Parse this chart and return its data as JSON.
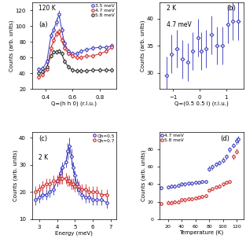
{
  "panel_a": {
    "title": "120 K",
    "xlabel": "Q=(h h 0) (r.l.u.)",
    "ylabel": "Counts (arb. units)",
    "ylim": [
      20,
      130
    ],
    "xlim": [
      0.3,
      0.92
    ],
    "yticks": [
      20,
      40,
      60,
      80,
      100,
      120
    ],
    "xticks": [
      0.4,
      0.6,
      0.8
    ],
    "label": "(a)",
    "series": [
      {
        "label": "3.5 meV",
        "color": "#3333bb",
        "x": [
          0.35,
          0.38,
          0.41,
          0.44,
          0.46,
          0.48,
          0.5,
          0.52,
          0.54,
          0.57,
          0.6,
          0.63,
          0.66,
          0.7,
          0.75,
          0.8,
          0.85,
          0.89
        ],
        "y": [
          45,
          46,
          55,
          88,
          95,
          105,
          115,
          95,
          78,
          68,
          65,
          65,
          68,
          70,
          72,
          73,
          73,
          75
        ],
        "yerr": [
          3,
          3,
          3,
          4,
          4,
          5,
          5,
          4,
          4,
          3,
          3,
          3,
          3,
          3,
          3,
          3,
          3,
          3
        ],
        "xerr": [
          0.01,
          0.01,
          0.01,
          0.01,
          0.01,
          0.01,
          0.01,
          0.01,
          0.01,
          0.01,
          0.01,
          0.01,
          0.01,
          0.01,
          0.01,
          0.01,
          0.01,
          0.01
        ]
      },
      {
        "label": "4.7 meV",
        "color": "#cc2222",
        "x": [
          0.35,
          0.38,
          0.41,
          0.44,
          0.46,
          0.48,
          0.5,
          0.52,
          0.54,
          0.57,
          0.6,
          0.63,
          0.66,
          0.7,
          0.75,
          0.8,
          0.85,
          0.89
        ],
        "y": [
          35,
          38,
          45,
          72,
          82,
          90,
          93,
          82,
          72,
          65,
          62,
          60,
          60,
          62,
          62,
          65,
          68,
          73
        ],
        "yerr": [
          3,
          3,
          3,
          4,
          4,
          4,
          4,
          4,
          3,
          3,
          3,
          3,
          3,
          3,
          3,
          3,
          3,
          3
        ],
        "xerr": [
          0.01,
          0.01,
          0.01,
          0.01,
          0.01,
          0.01,
          0.01,
          0.01,
          0.01,
          0.01,
          0.01,
          0.01,
          0.01,
          0.01,
          0.01,
          0.01,
          0.01,
          0.01
        ]
      },
      {
        "label": "5.8 meV",
        "color": "#222222",
        "x": [
          0.35,
          0.38,
          0.41,
          0.44,
          0.46,
          0.48,
          0.5,
          0.52,
          0.54,
          0.57,
          0.6,
          0.63,
          0.66,
          0.7,
          0.75,
          0.8,
          0.85,
          0.89
        ],
        "y": [
          40,
          42,
          48,
          62,
          67,
          67,
          68,
          65,
          55,
          48,
          44,
          43,
          43,
          43,
          44,
          44,
          44,
          44
        ],
        "yerr": [
          3,
          3,
          3,
          3,
          3,
          3,
          3,
          3,
          3,
          3,
          3,
          3,
          3,
          3,
          3,
          3,
          3,
          3
        ],
        "xerr": [
          0.01,
          0.01,
          0.01,
          0.01,
          0.01,
          0.01,
          0.01,
          0.01,
          0.01,
          0.01,
          0.01,
          0.01,
          0.01,
          0.01,
          0.01,
          0.01,
          0.01,
          0.01
        ]
      }
    ]
  },
  "panel_b": {
    "title": "2 K",
    "subtitle": "4.7 meV",
    "xlabel": "Q=(0.5 0.5 l) (r.l.u.)",
    "ylabel": "Counts (arb. units)",
    "ylim": [
      27,
      43
    ],
    "xlim": [
      -1.5,
      1.65
    ],
    "yticks": [
      30,
      35,
      40
    ],
    "xticks": [
      -1,
      0,
      1
    ],
    "label": "(b)",
    "series": [
      {
        "color": "#3333bb",
        "x": [
          -1.25,
          -1.05,
          -0.85,
          -0.65,
          -0.45,
          -0.25,
          -0.05,
          0.05,
          0.25,
          0.45,
          0.65,
          0.85,
          1.05,
          1.25,
          1.45
        ],
        "y": [
          29.5,
          33.5,
          34.5,
          32.5,
          32.0,
          34.0,
          36.5,
          34.0,
          34.5,
          37.0,
          35.0,
          35.0,
          39.0,
          39.5,
          39.5
        ],
        "yerr": [
          3.5,
          3.5,
          3.5,
          3.5,
          3.5,
          3.5,
          3.5,
          3.5,
          3.5,
          3.5,
          3.5,
          3.5,
          3.5,
          3.5,
          3.5
        ],
        "xerr": [
          0.08,
          0.08,
          0.08,
          0.08,
          0.08,
          0.08,
          0.08,
          0.08,
          0.08,
          0.08,
          0.08,
          0.08,
          0.08,
          0.08,
          0.08
        ]
      }
    ]
  },
  "panel_c": {
    "title": "2 K",
    "xlabel": "Energy (meV)",
    "ylabel": "Counts (arb. units)",
    "ylim": [
      10,
      42
    ],
    "xlim": [
      2.6,
      7.3
    ],
    "yticks": [
      10,
      20,
      30,
      40
    ],
    "xticks": [
      3,
      4,
      5,
      6,
      7
    ],
    "label": "(c)",
    "series": [
      {
        "label": "Qh=0.5",
        "color": "#3333bb",
        "x": [
          2.8,
          3.0,
          3.2,
          3.4,
          3.6,
          3.8,
          4.0,
          4.1,
          4.2,
          4.3,
          4.5,
          4.6,
          4.7,
          4.8,
          4.9,
          5.0,
          5.1,
          5.2,
          5.4,
          5.6,
          5.8,
          6.0,
          6.2,
          6.5,
          6.8
        ],
        "y": [
          17,
          18,
          19,
          19,
          20,
          21,
          24,
          25,
          27,
          29,
          31,
          35,
          37,
          33,
          29,
          26,
          23,
          21,
          19,
          18,
          18,
          17,
          17,
          17,
          16
        ],
        "yerr": [
          2,
          2,
          2,
          2,
          2,
          2,
          2,
          2,
          2,
          2,
          2,
          3,
          3,
          3,
          2,
          2,
          2,
          2,
          2,
          2,
          2,
          2,
          2,
          2,
          2
        ],
        "xerr": [
          0.1,
          0.1,
          0.1,
          0.1,
          0.1,
          0.1,
          0.1,
          0.1,
          0.1,
          0.1,
          0.1,
          0.1,
          0.1,
          0.1,
          0.1,
          0.1,
          0.1,
          0.1,
          0.1,
          0.1,
          0.1,
          0.1,
          0.1,
          0.1,
          0.1
        ]
      },
      {
        "label": "Qh=0.7",
        "color": "#cc2222",
        "x": [
          2.8,
          3.0,
          3.2,
          3.4,
          3.6,
          3.8,
          4.0,
          4.1,
          4.2,
          4.3,
          4.5,
          4.6,
          4.7,
          4.8,
          4.9,
          5.0,
          5.1,
          5.2,
          5.4,
          5.6,
          5.8,
          6.0,
          6.2,
          6.5,
          6.8
        ],
        "y": [
          20,
          21,
          22,
          23,
          23,
          24,
          24,
          25,
          25,
          25,
          25,
          24,
          24,
          23,
          23,
          22,
          22,
          22,
          21,
          21,
          20,
          20,
          20,
          19,
          19
        ],
        "yerr": [
          2,
          2,
          2,
          2,
          2,
          2,
          2,
          2,
          2,
          2,
          2,
          2,
          2,
          2,
          2,
          2,
          2,
          2,
          2,
          2,
          2,
          2,
          2,
          2,
          2
        ],
        "xerr": [
          0.1,
          0.1,
          0.1,
          0.1,
          0.1,
          0.1,
          0.1,
          0.1,
          0.1,
          0.1,
          0.1,
          0.1,
          0.1,
          0.1,
          0.1,
          0.1,
          0.1,
          0.1,
          0.1,
          0.1,
          0.1,
          0.1,
          0.1,
          0.1,
          0.1
        ]
      }
    ]
  },
  "panel_d": {
    "xlabel": "Temperature (K)",
    "ylabel": "Counts (arb. units)",
    "ylim": [
      0,
      100
    ],
    "xlim": [
      8,
      130
    ],
    "yticks": [
      0,
      20,
      40,
      60,
      80
    ],
    "xticks": [
      20,
      40,
      60,
      80,
      100,
      120
    ],
    "label": "(d)",
    "series": [
      {
        "label": "4.7 meV",
        "color": "#3333bb",
        "x": [
          10,
          20,
          25,
          30,
          35,
          40,
          45,
          50,
          55,
          60,
          65,
          70,
          75,
          80,
          85,
          90,
          95,
          100,
          105,
          110,
          115,
          120,
          122
        ],
        "y": [
          36,
          37,
          38,
          38,
          39,
          40,
          40,
          41,
          41,
          42,
          42,
          43,
          43,
          58,
          60,
          63,
          65,
          68,
          72,
          80,
          85,
          90,
          92
        ],
        "yerr": [
          2,
          2,
          2,
          2,
          2,
          2,
          2,
          2,
          2,
          2,
          2,
          2,
          2,
          3,
          3,
          3,
          3,
          3,
          3,
          3,
          3,
          4,
          4
        ]
      },
      {
        "label": "5.8 meV",
        "color": "#cc2222",
        "x": [
          10,
          20,
          25,
          30,
          35,
          40,
          45,
          50,
          55,
          60,
          65,
          70,
          75,
          80,
          85,
          90,
          95,
          100,
          105,
          110,
          115,
          120
        ],
        "y": [
          18,
          19,
          19,
          20,
          20,
          22,
          22,
          23,
          23,
          24,
          25,
          26,
          27,
          33,
          35,
          37,
          38,
          40,
          42,
          43,
          72,
          78
        ],
        "yerr": [
          2,
          2,
          2,
          2,
          2,
          2,
          2,
          2,
          2,
          2,
          2,
          2,
          2,
          2,
          2,
          2,
          2,
          2,
          2,
          2,
          3,
          3
        ]
      }
    ]
  }
}
